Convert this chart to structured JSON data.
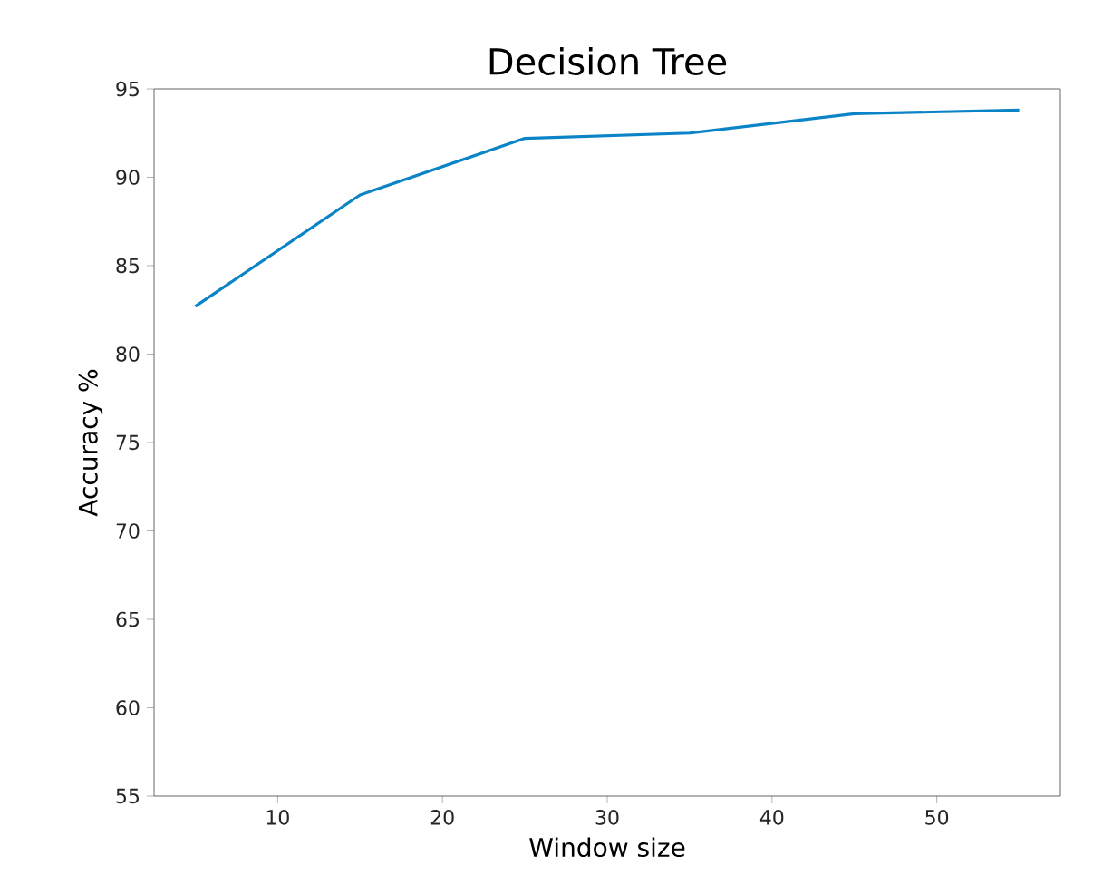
{
  "chart_data": {
    "type": "line",
    "title": "Decision Tree",
    "xlabel": "Window size",
    "ylabel": "Accuracy %",
    "x": [
      5,
      15,
      25,
      35,
      45,
      55
    ],
    "series": [
      {
        "color": "#0a84c6",
        "values": [
          82.7,
          89.0,
          92.2,
          92.5,
          93.6,
          93.8
        ]
      }
    ],
    "xlim": [
      2.5,
      57.5
    ],
    "xticks": [
      10,
      20,
      30,
      40,
      50
    ],
    "ylim": [
      55,
      95
    ],
    "yticks": [
      55,
      60,
      65,
      70,
      75,
      80,
      85,
      90,
      95
    ],
    "grid": false,
    "marker": "none",
    "line_style": "solid"
  }
}
